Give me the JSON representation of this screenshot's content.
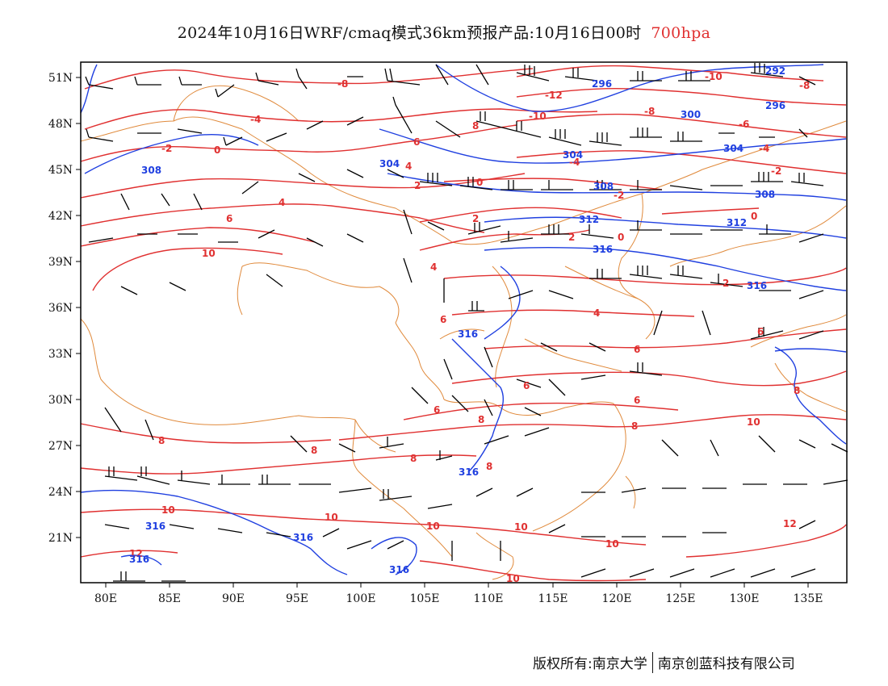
{
  "title": {
    "main": "2024年10月16日WRF/cmaq模式36km预报产品:10月16日00时",
    "level": "700hpa"
  },
  "axes": {
    "lat_ticks": [
      "51N",
      "48N",
      "45N",
      "42N",
      "39N",
      "36N",
      "33N",
      "30N",
      "27N",
      "24N",
      "21N"
    ],
    "lon_ticks": [
      "80E",
      "85E",
      "90E",
      "95E",
      "100E",
      "105E",
      "110E",
      "115E",
      "120E",
      "125E",
      "130E",
      "135E"
    ]
  },
  "contour_labels": {
    "temperature": [
      "-8",
      "-4",
      "-2",
      "0",
      "2",
      "4",
      "6",
      "8",
      "10",
      "12",
      "-10",
      "-12",
      "-6"
    ],
    "geopotential": [
      "292",
      "296",
      "300",
      "304",
      "308",
      "312",
      "316"
    ]
  },
  "colors": {
    "temperature_contour": "#e03030",
    "geopotential_contour": "#2040e0",
    "boundary": "#e08a3c",
    "wind_barb": "#000000"
  },
  "footer": {
    "owner": "版权所有:南京大学",
    "partner": "南京创蓝科技有限公司"
  }
}
